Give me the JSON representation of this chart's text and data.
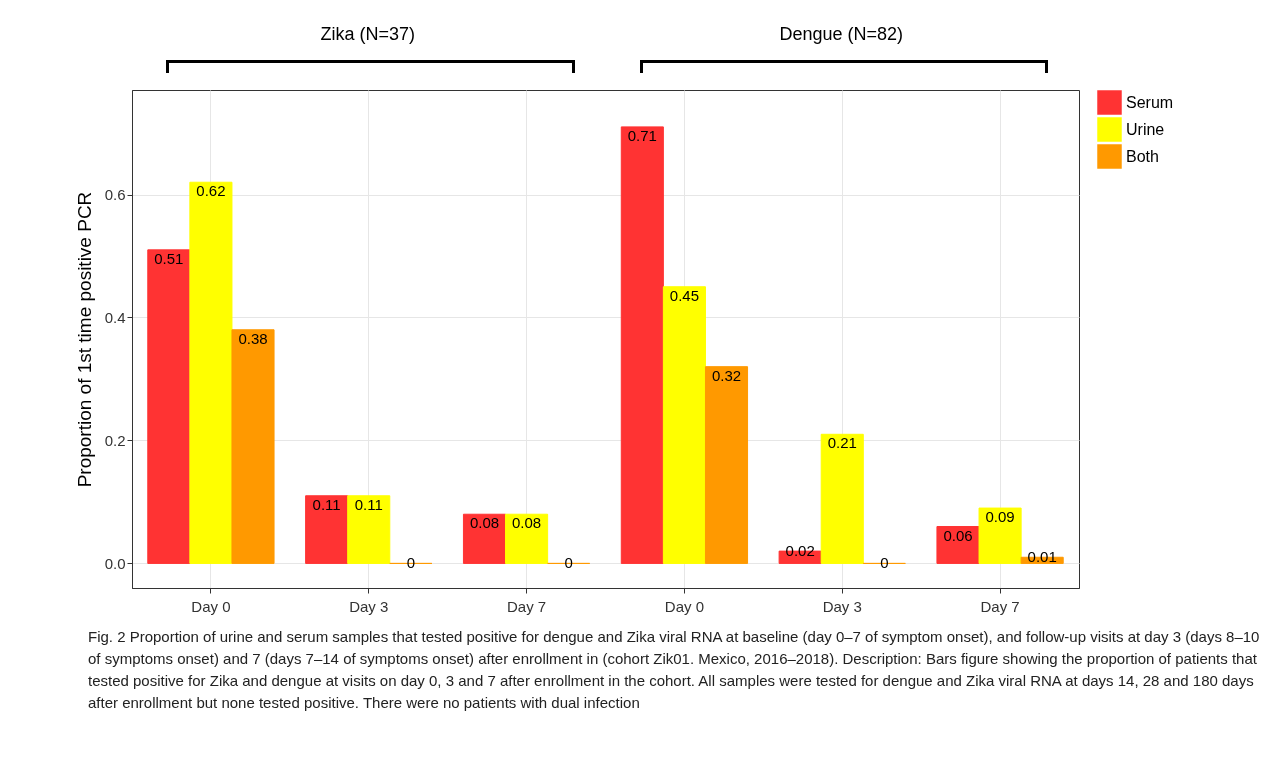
{
  "chart_data": {
    "type": "bar",
    "ylabel": "Proportion of 1st time positive PCR",
    "categories": [
      "Day 0",
      "Day 3",
      "Day 7",
      "Day 0",
      "Day 3",
      "Day 7"
    ],
    "series": [
      {
        "name": "Serum",
        "color": "#ff3333",
        "values": [
          0.51,
          0.11,
          0.08,
          0.71,
          0.02,
          0.06
        ]
      },
      {
        "name": "Urine",
        "color": "#ffff00",
        "values": [
          0.62,
          0.11,
          0.08,
          0.45,
          0.21,
          0.09
        ]
      },
      {
        "name": "Both",
        "color": "#ff9900",
        "values": [
          0.38,
          0,
          0,
          0.32,
          0,
          0.01
        ]
      }
    ],
    "ylim": [
      -0.04,
      0.77
    ],
    "yticks": [
      {
        "value": 0,
        "label": "0.0"
      },
      0.2,
      0.4,
      0.6
    ],
    "grid": true,
    "legend": "right",
    "data_labels": true,
    "annotations": [
      "Zika (N=37)",
      "Dengue (N=82)",
      "Fig. 2  Proportion of urine and serum samples that tested positive for dengue and Zika viral RNA at baseline (day 0–7 of symptom onset), and follow-up visits at day 3 (days 8–10 of symptoms onset) and 7 (days 7–14 of symptoms onset) after enrollment in (cohort Zik01. Mexico, 2016–2018). Description: Bars figure showing the proportion of patients that tested positive for Zika and dengue at visits on day 0, 3 and 7 after enrollment in the cohort. All samples were tested for dengue and Zika viral RNA at days 14, 28 and 180 days after enrollment but none tested positive. There were no patients with dual infection"
    ]
  }
}
